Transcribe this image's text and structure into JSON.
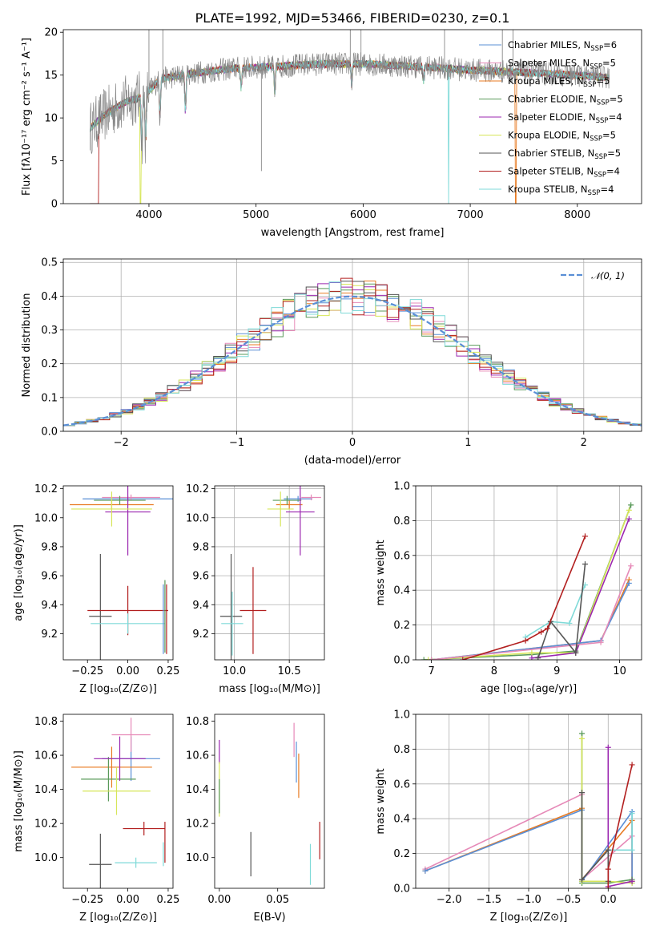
{
  "chart_data": [
    {
      "id": "spectrum",
      "type": "line",
      "title": "PLATE=1992, MJD=53466, FIBERID=0230, z=0.1",
      "xlabel": "wavelength [Angstrom, rest frame]",
      "ylabel": "Flux [fλ10⁻¹⁷ erg cm⁻² s⁻¹ A⁻¹]",
      "xlim": [
        3200,
        8600
      ],
      "ylim": [
        0,
        20.3
      ],
      "xticks": [
        4000,
        5000,
        6000,
        7000,
        8000
      ],
      "yticks": [
        0,
        5,
        10,
        15,
        20
      ],
      "grid": false,
      "legend_position": "top-right",
      "data_color": "#888888",
      "series": [
        {
          "name": "Chabrier MILES, N",
          "sub": "SSP",
          "suffix": "=6",
          "color": "#5a8fd6"
        },
        {
          "name": "Salpeter MILES, N",
          "sub": "SSP",
          "suffix": "=5",
          "color": "#e68ab8"
        },
        {
          "name": "Kroupa MILES, N",
          "sub": "SSP",
          "suffix": "=5",
          "color": "#e87b23"
        },
        {
          "name": "Chabrier ELODIE, N",
          "sub": "SSP",
          "suffix": "=5",
          "color": "#5a9a5a"
        },
        {
          "name": "Salpeter ELODIE, N",
          "sub": "SSP",
          "suffix": "=4",
          "color": "#9b27b0"
        },
        {
          "name": "Kroupa ELODIE, N",
          "sub": "SSP",
          "suffix": "=5",
          "color": "#d7e65a"
        },
        {
          "name": "Chabrier STELIB, N",
          "sub": "SSP",
          "suffix": "=5",
          "color": "#555555"
        },
        {
          "name": "Salpeter STELIB, N",
          "sub": "SSP",
          "suffix": "=4",
          "color": "#b21f1f"
        },
        {
          "name": "Kroupa STELIB, N",
          "sub": "SSP",
          "suffix": "=4",
          "color": "#7fdad8"
        }
      ],
      "continuum": [
        [
          3450,
          8.8
        ],
        [
          3600,
          10.5
        ],
        [
          3800,
          12.0
        ],
        [
          3950,
          12.5
        ],
        [
          4100,
          14.5
        ],
        [
          4400,
          15.2
        ],
        [
          4800,
          15.8
        ],
        [
          5200,
          16.0
        ],
        [
          5600,
          16.3
        ],
        [
          6000,
          16.3
        ],
        [
          6500,
          16.0
        ],
        [
          7000,
          15.6
        ],
        [
          7500,
          15.3
        ],
        [
          8000,
          15.0
        ],
        [
          8300,
          14.7
        ]
      ]
    },
    {
      "id": "residuals",
      "type": "histogram",
      "xlabel": "(data-model)/error",
      "ylabel": "Normed distribution",
      "xlim": [
        -2.5,
        2.5
      ],
      "ylim": [
        0,
        0.51
      ],
      "xticks": [
        -2,
        -1,
        0,
        1,
        2
      ],
      "yticks": [
        0.0,
        0.1,
        0.2,
        0.3,
        0.4,
        0.5
      ],
      "grid": true,
      "legend_position": "top-right",
      "gaussian_legend": "𝒩(0, 1)",
      "gaussian_color": "#5a8fd6",
      "bin_width": 0.1
    },
    {
      "id": "age-vs-z",
      "type": "scatter",
      "xlabel": "Z [log₁₀(Z/Z⊙)]",
      "ylabel": "age  [log₁₀(age/yr)]",
      "xlim": [
        -0.4,
        0.28
      ],
      "ylim": [
        9.02,
        10.22
      ],
      "xticks": [
        -0.25,
        0.0,
        0.25
      ],
      "yticks": [
        9.2,
        9.4,
        9.6,
        9.8,
        10.0,
        10.2
      ],
      "grid": false,
      "points": [
        {
          "x": 0.0,
          "y": 10.13,
          "xerr": 0.28,
          "yerr": 0.02,
          "color": "#5a8fd6"
        },
        {
          "x": 0.02,
          "y": 10.14,
          "xerr": 0.18,
          "yerr": 0.02,
          "color": "#e68ab8"
        },
        {
          "x": -0.1,
          "y": 10.09,
          "xerr": 0.26,
          "yerr": 0.03,
          "color": "#e87b23"
        },
        {
          "x": -0.05,
          "y": 10.12,
          "xerr": 0.16,
          "yerr": 0.03,
          "color": "#5a9a5a"
        },
        {
          "x": 0.0,
          "y": 10.04,
          "xerr": 0.14,
          "yerr": 0.3,
          "color": "#9b27b0"
        },
        {
          "x": -0.1,
          "y": 10.06,
          "xerr": 0.25,
          "yerr": 0.12,
          "color": "#d7e65a"
        },
        {
          "x": -0.17,
          "y": 9.32,
          "xerr": 0.07,
          "yerr": 0.43,
          "color": "#555555"
        },
        {
          "x": 0.0,
          "y": 9.36,
          "xerr": 0.25,
          "yerr": 0.17,
          "color": "#b21f1f"
        },
        {
          "x": 0.0,
          "y": 9.27,
          "xerr": 0.23,
          "yerr": 0.07,
          "color": "#7fdad8"
        },
        {
          "x": 0.22,
          "y": 9.3,
          "xerr": 0.0,
          "yerr": 0.24,
          "color": "#5a8fd6"
        },
        {
          "x": 0.23,
          "y": 9.32,
          "xerr": 0.0,
          "yerr": 0.25,
          "color": "#5a9a5a"
        },
        {
          "x": 0.24,
          "y": 9.3,
          "xerr": 0.0,
          "yerr": 0.24,
          "color": "#b21f1f"
        }
      ]
    },
    {
      "id": "age-vs-mass",
      "type": "scatter",
      "xlabel": "mass [log₁₀(M/M⊙)]",
      "ylabel": "",
      "xlim": [
        9.82,
        10.82
      ],
      "ylim": [
        9.02,
        10.22
      ],
      "xticks": [
        10.0,
        10.5
      ],
      "yticks": [
        9.2,
        9.4,
        9.6,
        9.8,
        10.0,
        10.2
      ],
      "grid": true,
      "points": [
        {
          "x": 10.58,
          "y": 10.13,
          "xerr": 0.13,
          "yerr": 0.02,
          "color": "#5a8fd6"
        },
        {
          "x": 10.7,
          "y": 10.14,
          "xerr": 0.09,
          "yerr": 0.02,
          "color": "#e68ab8"
        },
        {
          "x": 10.5,
          "y": 10.09,
          "xerr": 0.12,
          "yerr": 0.03,
          "color": "#e87b23"
        },
        {
          "x": 10.48,
          "y": 10.12,
          "xerr": 0.13,
          "yerr": 0.03,
          "color": "#5a9a5a"
        },
        {
          "x": 10.6,
          "y": 10.04,
          "xerr": 0.13,
          "yerr": 0.3,
          "color": "#9b27b0"
        },
        {
          "x": 10.42,
          "y": 10.06,
          "xerr": 0.12,
          "yerr": 0.12,
          "color": "#d7e65a"
        },
        {
          "x": 9.97,
          "y": 9.32,
          "xerr": 0.1,
          "yerr": 0.43,
          "color": "#555555"
        },
        {
          "x": 10.17,
          "y": 9.36,
          "xerr": 0.12,
          "yerr": 0.3,
          "color": "#b21f1f"
        },
        {
          "x": 9.98,
          "y": 9.27,
          "xerr": 0.1,
          "yerr": 0.22,
          "color": "#7fdad8"
        }
      ]
    },
    {
      "id": "mass-weight-vs-age",
      "type": "line",
      "xlabel": "age  [log₁₀(age/yr)]",
      "ylabel": "mass weight",
      "xlim": [
        6.75,
        10.35
      ],
      "ylim": [
        0,
        1.0
      ],
      "xticks": [
        7,
        8,
        9,
        10
      ],
      "yticks": [
        0.0,
        0.2,
        0.4,
        0.6,
        0.8,
        1.0
      ],
      "grid": true,
      "series": [
        {
          "name": "",
          "color": "#5a9a5a",
          "points": [
            [
              6.88,
              0.0
            ],
            [
              8.6,
              0.03
            ],
            [
              9.3,
              0.05
            ],
            [
              10.18,
              0.89
            ]
          ]
        },
        {
          "name": "",
          "color": "#d7e65a",
          "points": [
            [
              6.95,
              0.0
            ],
            [
              8.6,
              0.04
            ],
            [
              9.3,
              0.04
            ],
            [
              10.15,
              0.86
            ]
          ]
        },
        {
          "name": "",
          "color": "#9b27b0",
          "points": [
            [
              8.6,
              0.01
            ],
            [
              9.3,
              0.04
            ],
            [
              10.15,
              0.81
            ]
          ]
        },
        {
          "name": "",
          "color": "#e87b23",
          "points": [
            [
              7.0,
              0.0
            ],
            [
              9.7,
              0.11
            ],
            [
              10.15,
              0.46
            ]
          ]
        },
        {
          "name": "",
          "color": "#5a8fd6",
          "points": [
            [
              7.0,
              0.0
            ],
            [
              9.7,
              0.11
            ],
            [
              10.15,
              0.44
            ]
          ]
        },
        {
          "name": "",
          "color": "#e68ab8",
          "points": [
            [
              7.0,
              0.0
            ],
            [
              9.7,
              0.1
            ],
            [
              10.18,
              0.54
            ]
          ]
        },
        {
          "name": "",
          "color": "#7fdad8",
          "points": [
            [
              8.5,
              0.13
            ],
            [
              8.9,
              0.22
            ],
            [
              9.2,
              0.21
            ],
            [
              9.45,
              0.43
            ]
          ]
        },
        {
          "name": "",
          "color": "#555555",
          "points": [
            [
              8.7,
              0.01
            ],
            [
              8.9,
              0.22
            ],
            [
              9.3,
              0.04
            ],
            [
              9.45,
              0.55
            ]
          ]
        },
        {
          "name": "",
          "color": "#b21f1f",
          "points": [
            [
              7.5,
              0.0
            ],
            [
              8.5,
              0.11
            ],
            [
              8.75,
              0.16
            ],
            [
              8.85,
              0.18
            ],
            [
              9.45,
              0.71
            ]
          ]
        }
      ]
    },
    {
      "id": "mass-vs-z",
      "type": "scatter",
      "xlabel": "Z [log₁₀(Z/Z⊙)]",
      "ylabel": "mass [log₁₀(M/M⊙)]",
      "xlim": [
        -0.4,
        0.28
      ],
      "ylim": [
        9.82,
        10.84
      ],
      "xticks": [
        -0.25,
        0.0,
        0.25
      ],
      "yticks": [
        10.0,
        10.2,
        10.4,
        10.6,
        10.8
      ],
      "grid": false,
      "points": [
        {
          "x": 0.02,
          "y": 10.58,
          "xerr": 0.18,
          "yerr": 0.13,
          "color": "#5a8fd6"
        },
        {
          "x": 0.02,
          "y": 10.72,
          "xerr": 0.12,
          "yerr": 0.1,
          "color": "#e68ab8"
        },
        {
          "x": -0.1,
          "y": 10.53,
          "xerr": 0.25,
          "yerr": 0.12,
          "color": "#e87b23"
        },
        {
          "x": -0.12,
          "y": 10.46,
          "xerr": 0.17,
          "yerr": 0.13,
          "color": "#5a9a5a"
        },
        {
          "x": -0.05,
          "y": 10.58,
          "xerr": 0.16,
          "yerr": 0.13,
          "color": "#9b27b0"
        },
        {
          "x": -0.07,
          "y": 10.39,
          "xerr": 0.21,
          "yerr": 0.14,
          "color": "#d7e65a"
        },
        {
          "x": -0.17,
          "y": 9.96,
          "xerr": 0.07,
          "yerr": 0.18,
          "color": "#555555"
        },
        {
          "x": 0.1,
          "y": 10.17,
          "xerr": 0.13,
          "yerr": 0.04,
          "color": "#b21f1f"
        },
        {
          "x": 0.05,
          "y": 9.97,
          "xerr": 0.13,
          "yerr": 0.03,
          "color": "#7fdad8"
        },
        {
          "x": 0.22,
          "y": 10.02,
          "xerr": 0.0,
          "yerr": 0.07,
          "color": "#7fdad8"
        },
        {
          "x": 0.23,
          "y": 10.09,
          "xerr": 0.0,
          "yerr": 0.12,
          "color": "#b21f1f"
        }
      ]
    },
    {
      "id": "mass-vs-ebv",
      "type": "scatter",
      "xlabel": "E(B-V)",
      "ylabel": "",
      "xlim": [
        -0.004,
        0.09
      ],
      "ylim": [
        9.82,
        10.84
      ],
      "xticks": [
        0.0,
        0.05
      ],
      "yticks": [
        10.0,
        10.2,
        10.4,
        10.6,
        10.8
      ],
      "grid": false,
      "points": [
        {
          "x": 0.0,
          "y": 10.62,
          "xerr": 0.0,
          "yerr": 0.07,
          "color": "#9b27b0"
        },
        {
          "x": 0.0,
          "y": 10.4,
          "xerr": 0.0,
          "yerr": 0.16,
          "color": "#d7e65a"
        },
        {
          "x": 0.0,
          "y": 10.36,
          "xerr": 0.0,
          "yerr": 0.1,
          "color": "#5a9a5a"
        },
        {
          "x": 0.027,
          "y": 10.02,
          "xerr": 0.0,
          "yerr": 0.13,
          "color": "#555555"
        },
        {
          "x": 0.064,
          "y": 10.69,
          "xerr": 0.0,
          "yerr": 0.1,
          "color": "#e68ab8"
        },
        {
          "x": 0.066,
          "y": 10.56,
          "xerr": 0.0,
          "yerr": 0.12,
          "color": "#5a8fd6"
        },
        {
          "x": 0.068,
          "y": 10.48,
          "xerr": 0.0,
          "yerr": 0.13,
          "color": "#e87b23"
        },
        {
          "x": 0.078,
          "y": 9.96,
          "xerr": 0.0,
          "yerr": 0.12,
          "color": "#7fdad8"
        },
        {
          "x": 0.086,
          "y": 10.1,
          "xerr": 0.0,
          "yerr": 0.11,
          "color": "#b21f1f"
        }
      ]
    },
    {
      "id": "mass-weight-vs-z",
      "type": "line",
      "xlabel": "Z [log₁₀(Z/Z⊙)]",
      "ylabel": "mass weight",
      "xlim": [
        -2.42,
        0.42
      ],
      "ylim": [
        0,
        1.0
      ],
      "xticks": [
        -2.0,
        -1.5,
        -1.0,
        -0.5,
        0.0
      ],
      "yticks": [
        0.0,
        0.2,
        0.4,
        0.6,
        0.8,
        1.0
      ],
      "grid": true,
      "series": [
        {
          "name": "",
          "color": "#e68ab8",
          "points": [
            [
              -2.3,
              0.11
            ],
            [
              -0.33,
              0.54
            ],
            [
              -0.33,
              0.05
            ],
            [
              0.3,
              0.3
            ],
            [
              0.3,
              0.04
            ]
          ]
        },
        {
          "name": "",
          "color": "#e87b23",
          "points": [
            [
              -2.3,
              0.1
            ],
            [
              -0.33,
              0.46
            ],
            [
              -0.33,
              0.05
            ],
            [
              0.3,
              0.39
            ],
            [
              0.3,
              0.04
            ]
          ]
        },
        {
          "name": "",
          "color": "#5a8fd6",
          "points": [
            [
              -2.3,
              0.1
            ],
            [
              -0.33,
              0.45
            ],
            [
              -0.33,
              0.04
            ],
            [
              0.3,
              0.44
            ],
            [
              0.3,
              0.03
            ]
          ]
        },
        {
          "name": "",
          "color": "#5a9a5a",
          "points": [
            [
              -0.33,
              0.89
            ],
            [
              -0.33,
              0.03
            ],
            [
              0.0,
              0.03
            ],
            [
              0.3,
              0.05
            ]
          ]
        },
        {
          "name": "",
          "color": "#d7e65a",
          "points": [
            [
              -0.33,
              0.86
            ],
            [
              -0.33,
              0.04
            ],
            [
              0.0,
              0.04
            ],
            [
              0.3,
              0.03
            ]
          ]
        },
        {
          "name": "",
          "color": "#9b27b0",
          "points": [
            [
              0.0,
              0.81
            ],
            [
              0.0,
              0.01
            ],
            [
              0.3,
              0.04
            ]
          ]
        },
        {
          "name": "",
          "color": "#7fdad8",
          "points": [
            [
              0.0,
              0.22
            ],
            [
              0.3,
              0.22
            ],
            [
              0.3,
              0.43
            ]
          ]
        },
        {
          "name": "",
          "color": "#555555",
          "points": [
            [
              -0.33,
              0.55
            ],
            [
              -0.33,
              0.05
            ],
            [
              0.0,
              0.22
            ],
            [
              0.0,
              0.04
            ]
          ]
        },
        {
          "name": "",
          "color": "#b21f1f",
          "points": [
            [
              0.0,
              0.0
            ],
            [
              0.0,
              0.11
            ],
            [
              0.3,
              0.71
            ]
          ]
        }
      ]
    }
  ]
}
